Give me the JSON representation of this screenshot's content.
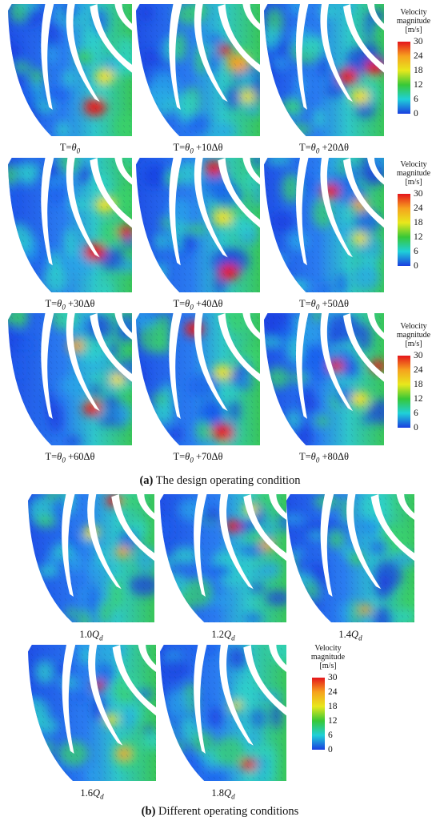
{
  "section_a": {
    "labels": [
      {
        "prefix": "T=",
        "theta": "θ",
        "sub": "0",
        "suffix": ""
      },
      {
        "prefix": "T=",
        "theta": "θ",
        "sub": "0",
        "suffix": " +10Δθ"
      },
      {
        "prefix": "T=",
        "theta": "θ",
        "sub": "0",
        "suffix": " +20Δθ"
      },
      {
        "prefix": "T=",
        "theta": "θ",
        "sub": "0",
        "suffix": " +30Δθ"
      },
      {
        "prefix": "T=",
        "theta": "θ",
        "sub": "0",
        "suffix": " +40Δθ"
      },
      {
        "prefix": "T=",
        "theta": "θ",
        "sub": "0",
        "suffix": " +50Δθ"
      },
      {
        "prefix": "T=",
        "theta": "θ",
        "sub": "0",
        "suffix": " +60Δθ"
      },
      {
        "prefix": "T=",
        "theta": "θ",
        "sub": "0",
        "suffix": " +70Δθ"
      },
      {
        "prefix": "T=",
        "theta": "θ",
        "sub": "0",
        "suffix": " +80Δθ"
      }
    ],
    "caption_letter": "(a)",
    "caption_text": " The design operating condition"
  },
  "section_b": {
    "labels": [
      {
        "num": "1.0",
        "q": "Q",
        "sub": "d"
      },
      {
        "num": "1.2",
        "q": "Q",
        "sub": "d"
      },
      {
        "num": "1.4",
        "q": "Q",
        "sub": "d"
      },
      {
        "num": "1.6",
        "q": "Q",
        "sub": "d"
      },
      {
        "num": "1.8",
        "q": "Q",
        "sub": "d"
      }
    ],
    "caption_letter": "(b)",
    "caption_text": " Different operating conditions"
  },
  "legend": {
    "title_line1": "Velocity",
    "title_line2": "magnitude",
    "unit": "[m/s]",
    "ticks": [
      "30",
      "24",
      "18",
      "12",
      "6",
      "0"
    ],
    "colors": [
      "#e4151b",
      "#f6a21e",
      "#e8e81c",
      "#37c837",
      "#1fd0d8",
      "#1a3fe0"
    ]
  }
}
